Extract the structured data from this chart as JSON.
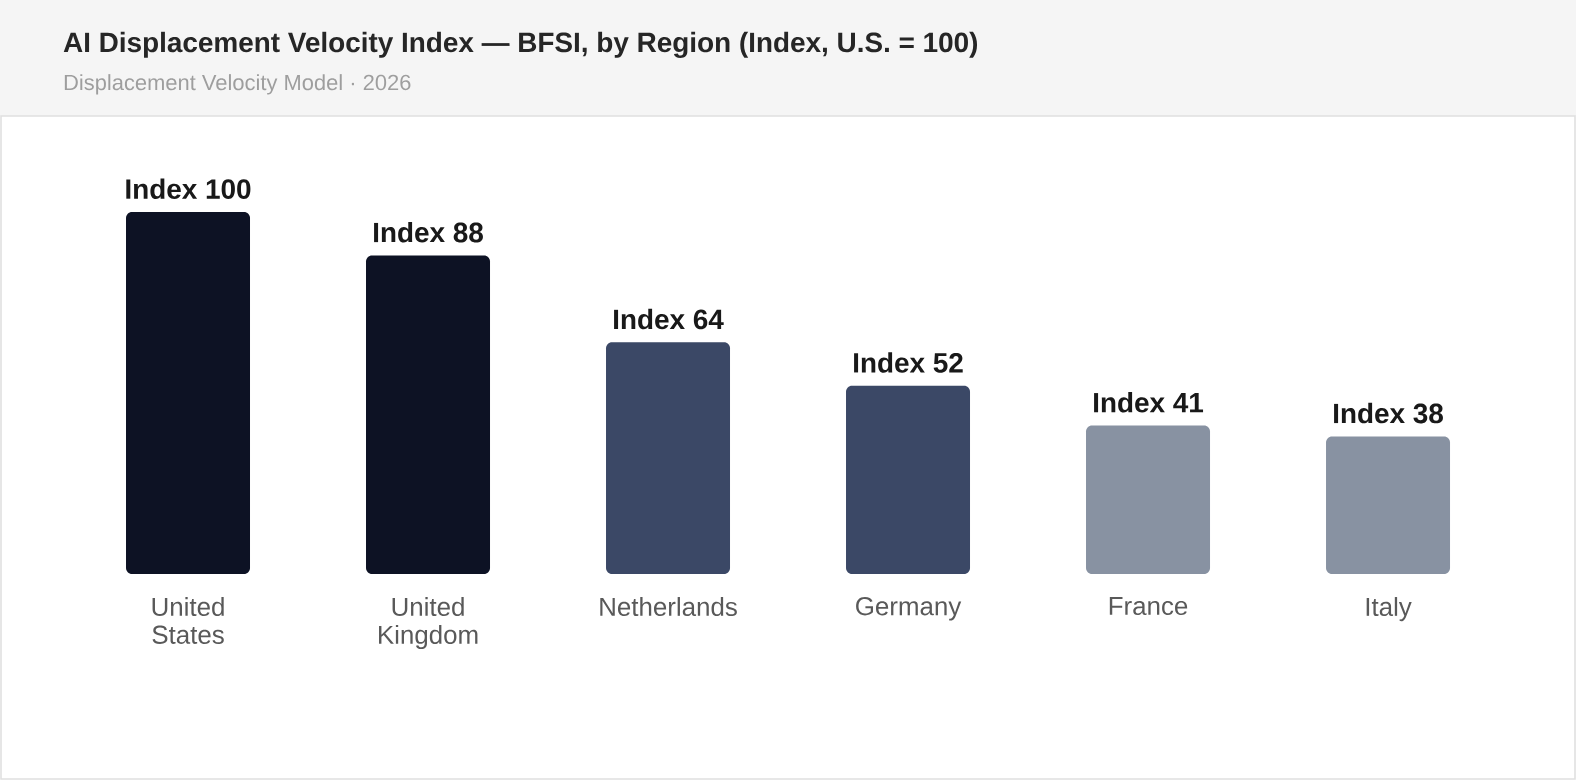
{
  "chart_data": {
    "type": "bar",
    "title": "AI Displacement Velocity Index — BFSI, by Region (Index, U.S. = 100)",
    "subtitle": "Displacement Velocity Model · 2026",
    "categories": [
      "United States",
      "United Kingdom",
      "Netherlands",
      "Germany",
      "France",
      "Italy"
    ],
    "values": [
      100,
      88,
      64,
      52,
      41,
      38
    ],
    "colors": [
      "#0d1224",
      "#0d1224",
      "#3b4866",
      "#3b4866",
      "#8892a2",
      "#8892a2"
    ],
    "value_labels": [
      "Index 100",
      "Index 88",
      "Index 64",
      "Index 52",
      "Index 41",
      "Index 38"
    ]
  }
}
